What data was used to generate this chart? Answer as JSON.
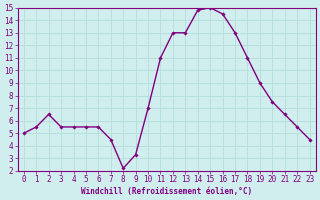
{
  "x": [
    0,
    1,
    2,
    3,
    4,
    5,
    6,
    7,
    8,
    9,
    10,
    11,
    12,
    13,
    14,
    15,
    16,
    17,
    18,
    19,
    20,
    21,
    22,
    23
  ],
  "y": [
    5,
    5.5,
    6.5,
    5.5,
    5.5,
    5.5,
    5.5,
    4.5,
    2.2,
    3.3,
    7,
    11,
    13,
    13,
    14.8,
    15.0,
    14.5,
    13,
    11,
    9,
    7.5,
    6.5,
    5.5,
    4.5
  ],
  "line_color": "#800080",
  "marker_color": "#800080",
  "bg_color": "#d0eeee",
  "grid_color": "#b8dede",
  "xlabel": "Windchill (Refroidissement éolien,°C)",
  "xlim": [
    -0.5,
    23.5
  ],
  "ylim": [
    2,
    15
  ],
  "xticks": [
    0,
    1,
    2,
    3,
    4,
    5,
    6,
    7,
    8,
    9,
    10,
    11,
    12,
    13,
    14,
    15,
    16,
    17,
    18,
    19,
    20,
    21,
    22,
    23
  ],
  "yticks": [
    2,
    3,
    4,
    5,
    6,
    7,
    8,
    9,
    10,
    11,
    12,
    13,
    14,
    15
  ],
  "xlabel_fontsize": 5.5,
  "tick_fontsize": 5.5,
  "marker_size": 1.8,
  "line_width": 1.0
}
